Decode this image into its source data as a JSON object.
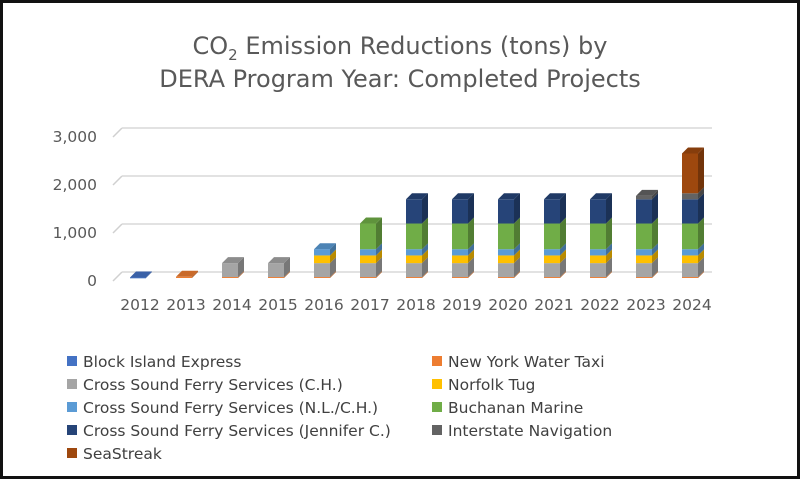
{
  "chart_data": {
    "type": "bar",
    "stacked": true,
    "style": "3d-column",
    "title": "CO2 Emission Reductions (tons) by DERA Program Year: Completed Projects",
    "title_lines": [
      [
        "CO",
        "2",
        " Emission Reductions (tons) by"
      ],
      [
        "DERA Program Year: Completed Projects"
      ]
    ],
    "xlabel": "",
    "ylabel": "",
    "ylim": [
      0,
      3000
    ],
    "yticks": [
      0,
      1000,
      2000,
      3000
    ],
    "ytick_labels": [
      "0",
      "1,000",
      "2,000",
      "3,000"
    ],
    "grid": true,
    "legend_position": "bottom",
    "categories": [
      "2012",
      "2013",
      "2014",
      "2015",
      "2016",
      "2017",
      "2018",
      "2019",
      "2020",
      "2021",
      "2022",
      "2023",
      "2024"
    ],
    "series": [
      {
        "name": "Block Island Express",
        "color": "#4472C4",
        "values": [
          10,
          0,
          0,
          0,
          0,
          0,
          0,
          0,
          0,
          0,
          0,
          0,
          0
        ]
      },
      {
        "name": "New York Water Taxi",
        "color": "#ED7D31",
        "values": [
          0,
          25,
          20,
          20,
          20,
          20,
          20,
          20,
          20,
          20,
          20,
          20,
          20
        ]
      },
      {
        "name": "Cross Sound Ferry Services (C.H.)",
        "color": "#A5A5A5",
        "values": [
          0,
          0,
          290,
          290,
          290,
          290,
          290,
          290,
          290,
          290,
          290,
          290,
          290
        ]
      },
      {
        "name": "Norfolk Tug",
        "color": "#FFC000",
        "values": [
          0,
          0,
          0,
          0,
          160,
          160,
          160,
          160,
          160,
          160,
          160,
          160,
          160
        ]
      },
      {
        "name": "Cross Sound Ferry Services (N.L./C.H.)",
        "color": "#5B9BD5",
        "values": [
          0,
          0,
          0,
          0,
          130,
          130,
          130,
          130,
          130,
          130,
          130,
          130,
          130
        ]
      },
      {
        "name": "Buchanan Marine",
        "color": "#70AD47",
        "values": [
          0,
          0,
          0,
          0,
          0,
          535,
          535,
          535,
          535,
          535,
          535,
          535,
          535
        ]
      },
      {
        "name": "Cross Sound Ferry Services (Jennifer C.)",
        "color": "#264478",
        "values": [
          0,
          0,
          0,
          0,
          0,
          0,
          505,
          505,
          505,
          505,
          505,
          505,
          505
        ]
      },
      {
        "name": "Interstate Navigation",
        "color": "#636363",
        "values": [
          0,
          0,
          0,
          0,
          0,
          0,
          0,
          0,
          0,
          0,
          0,
          70,
          125
        ]
      },
      {
        "name": "SeaStreak",
        "color": "#9E480E",
        "values": [
          0,
          0,
          0,
          0,
          0,
          0,
          0,
          0,
          0,
          0,
          0,
          0,
          830
        ]
      }
    ]
  }
}
